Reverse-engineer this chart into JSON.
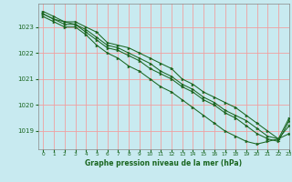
{
  "title": "Graphe pression niveau de la mer (hPa)",
  "bg_color": "#c8eaf0",
  "grid_color": "#f0a0a0",
  "line_color": "#1a6620",
  "xlim": [
    -0.5,
    23
  ],
  "ylim": [
    1018.3,
    1023.9
  ],
  "yticks": [
    1019,
    1020,
    1021,
    1022,
    1023
  ],
  "xticks": [
    0,
    1,
    2,
    3,
    4,
    5,
    6,
    7,
    8,
    9,
    10,
    11,
    12,
    13,
    14,
    15,
    16,
    17,
    18,
    19,
    20,
    21,
    22,
    23
  ],
  "series": [
    [
      1023.6,
      1023.4,
      1023.2,
      1023.2,
      1023.0,
      1022.8,
      1022.4,
      1022.3,
      1022.2,
      1022.0,
      1021.8,
      1021.6,
      1021.4,
      1021.0,
      1020.8,
      1020.5,
      1020.3,
      1020.1,
      1019.9,
      1019.6,
      1019.3,
      1019.0,
      1018.7,
      1019.5
    ],
    [
      1023.5,
      1023.3,
      1023.1,
      1023.1,
      1022.8,
      1022.5,
      1022.2,
      1022.1,
      1021.9,
      1021.7,
      1021.4,
      1021.2,
      1021.0,
      1020.7,
      1020.5,
      1020.2,
      1020.0,
      1019.7,
      1019.5,
      1019.2,
      1018.9,
      1018.7,
      1018.6,
      1019.4
    ],
    [
      1023.4,
      1023.2,
      1023.0,
      1023.0,
      1022.7,
      1022.3,
      1022.0,
      1021.8,
      1021.5,
      1021.3,
      1021.0,
      1020.7,
      1020.5,
      1020.2,
      1019.9,
      1019.6,
      1019.3,
      1019.0,
      1018.8,
      1018.6,
      1018.5,
      1018.6,
      1018.7,
      1018.9
    ],
    [
      1023.5,
      1023.3,
      1023.2,
      1023.1,
      1022.9,
      1022.6,
      1022.3,
      1022.2,
      1022.0,
      1021.8,
      1021.6,
      1021.3,
      1021.1,
      1020.8,
      1020.6,
      1020.3,
      1020.1,
      1019.8,
      1019.6,
      1019.4,
      1019.1,
      1018.8,
      1018.7,
      1019.2
    ]
  ]
}
